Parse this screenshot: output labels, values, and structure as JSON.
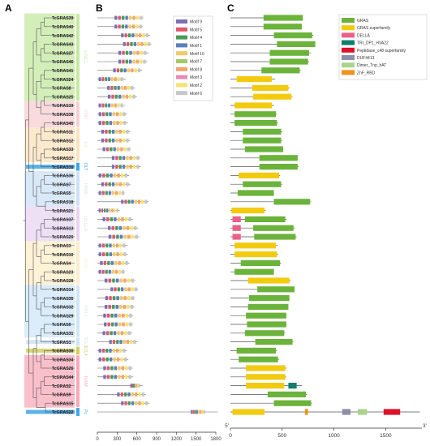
{
  "panels": {
    "a": "A",
    "b": "B",
    "c": "C"
  },
  "subfamily_colors": {
    "LISCL": "#c6e8a2",
    "SHR": "#f7cfd3",
    "LS": "#fbe3bf",
    "HAM": "#cde1f5",
    "PAT1": "#cfe6f8",
    "SCR": "#fdedc9",
    "DELLA": "#e7d5f1",
    "SCL3": "#cde3f7",
    "RAM": "#f7a9ba",
    "DLT": "#3ea6e6",
    "Pc": "#3ea6e6",
    "SCL4": "#d4cf61",
    "SCL": "#b7b7b7"
  },
  "subfamily_labels": {
    "LISCL": "LISCL",
    "SHR": "SHR",
    "LS": "LS",
    "DLT": "DLT",
    "HAM": "HAM",
    "DELLA": "DELLA",
    "SCR": "SCR",
    "PAT1": "PAT1",
    "SCL3": "SCL3",
    "SCL4": "SCL4",
    "RAM": "RAM",
    "Pc": "Pc"
  },
  "genes": [
    {
      "name": "TcGRAS39",
      "len": 700,
      "domains": [
        [
          320,
          700,
          "GRAS"
        ]
      ]
    },
    {
      "name": "TcGRAS40",
      "len": 690,
      "domains": [
        [
          320,
          690,
          "GRAS"
        ]
      ]
    },
    {
      "name": "TcGRAS42",
      "len": 800,
      "domains": [
        [
          420,
          790,
          "GRAS"
        ]
      ]
    },
    {
      "name": "TcGRAS43",
      "len": 820,
      "domains": [
        [
          450,
          820,
          "GRAS"
        ]
      ]
    },
    {
      "name": "TcGRAS27",
      "len": 780,
      "domains": [
        [
          380,
          760,
          "GRAS"
        ]
      ]
    },
    {
      "name": "TcGRAS46",
      "len": 760,
      "domains": [
        [
          380,
          750,
          "GRAS"
        ]
      ]
    },
    {
      "name": "TcGRAS41",
      "len": 680,
      "domains": [
        [
          300,
          670,
          "GRAS"
        ]
      ]
    },
    {
      "name": "TcGRAS24",
      "len": 430,
      "domains": [
        [
          60,
          400,
          "GRAS superfamily"
        ]
      ]
    },
    {
      "name": "TcGRAS8",
      "len": 570,
      "domains": [
        [
          210,
          560,
          "GRAS superfamily"
        ]
      ]
    },
    {
      "name": "TcGRAS25",
      "len": 600,
      "domains": [
        [
          220,
          590,
          "GRAS superfamily"
        ]
      ]
    },
    {
      "name": "TcGRAS19",
      "len": 420,
      "domains": [
        [
          40,
          400,
          "GRAS superfamily"
        ]
      ]
    },
    {
      "name": "TcGRAS38",
      "len": 450,
      "domains": [
        [
          40,
          440,
          "GRAS"
        ]
      ]
    },
    {
      "name": "TcGRAS45",
      "len": 460,
      "domains": [
        [
          40,
          450,
          "GRAS"
        ]
      ]
    },
    {
      "name": "TcGRAS11",
      "len": 500,
      "domains": [
        [
          120,
          490,
          "GRAS"
        ]
      ]
    },
    {
      "name": "TcGRAS12",
      "len": 500,
      "domains": [
        [
          120,
          490,
          "GRAS"
        ]
      ]
    },
    {
      "name": "TcGRAS33",
      "len": 510,
      "domains": [
        [
          140,
          510,
          "GRAS"
        ]
      ]
    },
    {
      "name": "TcGRAS17",
      "len": 650,
      "domains": [
        [
          280,
          650,
          "GRAS"
        ]
      ]
    },
    {
      "name": "TcGRAS16",
      "len": 660,
      "domains": [
        [
          280,
          650,
          "GRAS"
        ]
      ]
    },
    {
      "name": "TcGRAS36",
      "len": 480,
      "domains": [
        [
          80,
          470,
          "GRAS superfamily"
        ]
      ]
    },
    {
      "name": "TcGRAS7",
      "len": 500,
      "domains": [
        [
          120,
          490,
          "GRAS"
        ]
      ]
    },
    {
      "name": "TcGRAS5",
      "len": 420,
      "domains": [
        [
          70,
          420,
          "GRAS"
        ]
      ]
    },
    {
      "name": "TcGRAS18",
      "len": 780,
      "domains": [
        [
          420,
          770,
          "GRAS"
        ]
      ]
    },
    {
      "name": "TcGRAS21",
      "len": 340,
      "domains": [
        [
          10,
          330,
          "GRAS superfamily"
        ]
      ]
    },
    {
      "name": "TcGRAS37",
      "len": 540,
      "domains": [
        [
          20,
          100,
          "DELLA"
        ],
        [
          140,
          530,
          "GRAS"
        ]
      ]
    },
    {
      "name": "TcGRAS13",
      "len": 620,
      "domains": [
        [
          20,
          100,
          "DELLA"
        ],
        [
          220,
          610,
          "GRAS"
        ]
      ]
    },
    {
      "name": "TcGRAS20",
      "len": 640,
      "domains": [
        [
          20,
          100,
          "DELLA"
        ],
        [
          230,
          630,
          "GRAS"
        ]
      ]
    },
    {
      "name": "TcGRAS3",
      "len": 460,
      "domains": [
        [
          40,
          440,
          "GRAS superfamily"
        ]
      ]
    },
    {
      "name": "TcGRAS10",
      "len": 460,
      "domains": [
        [
          40,
          450,
          "GRAS superfamily"
        ]
      ]
    },
    {
      "name": "TcGRAS4",
      "len": 490,
      "domains": [
        [
          100,
          480,
          "GRAS"
        ]
      ]
    },
    {
      "name": "TcGRAS23",
      "len": 420,
      "domains": [
        [
          40,
          420,
          "GRAS"
        ]
      ]
    },
    {
      "name": "TcGRAS28",
      "len": 580,
      "domains": [
        [
          170,
          570,
          "GRAS superfamily"
        ]
      ]
    },
    {
      "name": "TcGRAS14",
      "len": 620,
      "domains": [
        [
          260,
          620,
          "GRAS"
        ]
      ]
    },
    {
      "name": "TcGRAS35",
      "len": 570,
      "domains": [
        [
          180,
          570,
          "GRAS"
        ]
      ]
    },
    {
      "name": "TcGRAS32",
      "len": 560,
      "domains": [
        [
          170,
          560,
          "GRAS"
        ]
      ]
    },
    {
      "name": "TcGRAS29",
      "len": 540,
      "domains": [
        [
          150,
          540,
          "GRAS"
        ]
      ]
    },
    {
      "name": "TcGRAS6",
      "len": 540,
      "domains": [
        [
          160,
          540,
          "GRAS"
        ]
      ]
    },
    {
      "name": "TcGRAS31",
      "len": 530,
      "domains": [
        [
          140,
          520,
          "GRAS"
        ]
      ]
    },
    {
      "name": "TcGRAS1",
      "len": 610,
      "domains": [
        [
          240,
          600,
          "GRAS"
        ]
      ]
    },
    {
      "name": "TcGRAS30",
      "len": 450,
      "domains": [
        [
          60,
          440,
          "GRAS"
        ]
      ]
    },
    {
      "name": "TcGRAS34",
      "len": 470,
      "domains": [
        [
          80,
          460,
          "GRAS"
        ]
      ]
    },
    {
      "name": "TcGRAS26",
      "len": 540,
      "domains": [
        [
          150,
          530,
          "GRAS superfamily"
        ]
      ]
    },
    {
      "name": "TcGRAS44",
      "len": 540,
      "domains": [
        [
          150,
          530,
          "GRAS superfamily"
        ]
      ]
    },
    {
      "name": "TcGRAS2",
      "len": 690,
      "domains": [
        [
          150,
          520,
          "GRAS superfamily"
        ],
        [
          560,
          640,
          "TRI_DP1_HVA22"
        ]
      ]
    },
    {
      "name": "TcGRAS9",
      "len": 740,
      "domains": [
        [
          360,
          730,
          "GRAS"
        ]
      ]
    },
    {
      "name": "TcGRAS15",
      "len": 790,
      "domains": [
        [
          420,
          780,
          "GRAS"
        ]
      ]
    },
    {
      "name": "TcGRAS22",
      "len": 1830,
      "domains": [
        [
          20,
          330,
          "GRAS superfamily"
        ],
        [
          720,
          750,
          "ZnF_RBD"
        ],
        [
          1080,
          1160,
          "DUF4413"
        ],
        [
          1230,
          1320,
          "Dimer_Tnp_hAT"
        ],
        [
          1480,
          1640,
          "Peptidase_c48 superfamily"
        ]
      ]
    }
  ],
  "clades": [
    {
      "id": "LISCL",
      "rows": [
        0,
        9
      ]
    },
    {
      "id": "SHR",
      "rows": [
        10,
        12
      ]
    },
    {
      "id": "LS",
      "rows": [
        13,
        16
      ]
    },
    {
      "id": "DLT",
      "rows": [
        17,
        17
      ]
    },
    {
      "id": "HAM",
      "rows": [
        18,
        21
      ]
    },
    {
      "id": "DELLA",
      "rows": [
        22,
        25
      ]
    },
    {
      "id": "SCR",
      "rows": [
        26,
        30
      ]
    },
    {
      "id": "PAT1",
      "rows": [
        31,
        36
      ]
    },
    {
      "id": "SCL3",
      "rows": [
        37,
        37
      ]
    },
    {
      "id": "SCL4",
      "rows": [
        38,
        38
      ]
    },
    {
      "id": "RAM",
      "rows": [
        39,
        44
      ]
    },
    {
      "id": "Pc",
      "rows": [
        45,
        45
      ]
    }
  ],
  "motif_legend": [
    {
      "name": "Motif 9",
      "color": "#7d6fb2"
    },
    {
      "name": "Motif 5",
      "color": "#e0586b"
    },
    {
      "name": "Motif 4",
      "color": "#4b9a5b"
    },
    {
      "name": "Motif 1",
      "color": "#5b7fbf"
    },
    {
      "name": "Motif 10",
      "color": "#f2c96b"
    },
    {
      "name": "Motif 7",
      "color": "#a6c765"
    },
    {
      "name": "Motif 8",
      "color": "#f3a56a"
    },
    {
      "name": "Motif 3",
      "color": "#e58cb6"
    },
    {
      "name": "Motif 2",
      "color": "#f6e36e"
    },
    {
      "name": "Motif 6",
      "color": "#c7c7c7"
    }
  ],
  "domain_legend": [
    {
      "name": "GRAS",
      "color": "#6bb33a"
    },
    {
      "name": "GRAS superfamily",
      "color": "#f2cb10"
    },
    {
      "name": "DELLA",
      "color": "#ea6089"
    },
    {
      "name": "TRI_DP1_HVA22",
      "color": "#0f7f6c"
    },
    {
      "name": "Peptidase_c48 superfamily",
      "color": "#dd1128"
    },
    {
      "name": "DUF4413",
      "color": "#8b8fa8"
    },
    {
      "name": "Dimer_Tnp_hAT",
      "color": "#a9d58a"
    },
    {
      "name": "ZnF_RBD",
      "color": "#f0931a"
    }
  ],
  "axis_b": {
    "ticks": [
      "0",
      "300",
      "600",
      "900",
      "1200",
      "1500",
      "1800"
    ],
    "min": 0,
    "max": 1800
  },
  "axis_c": {
    "ticks": [
      "0",
      "500",
      "1000",
      "1500"
    ],
    "min": 0,
    "max": 1850,
    "left_end": "5'",
    "right_end": "3'"
  },
  "motif_pattern": [
    9,
    5,
    4,
    1,
    10,
    8,
    2,
    6
  ]
}
